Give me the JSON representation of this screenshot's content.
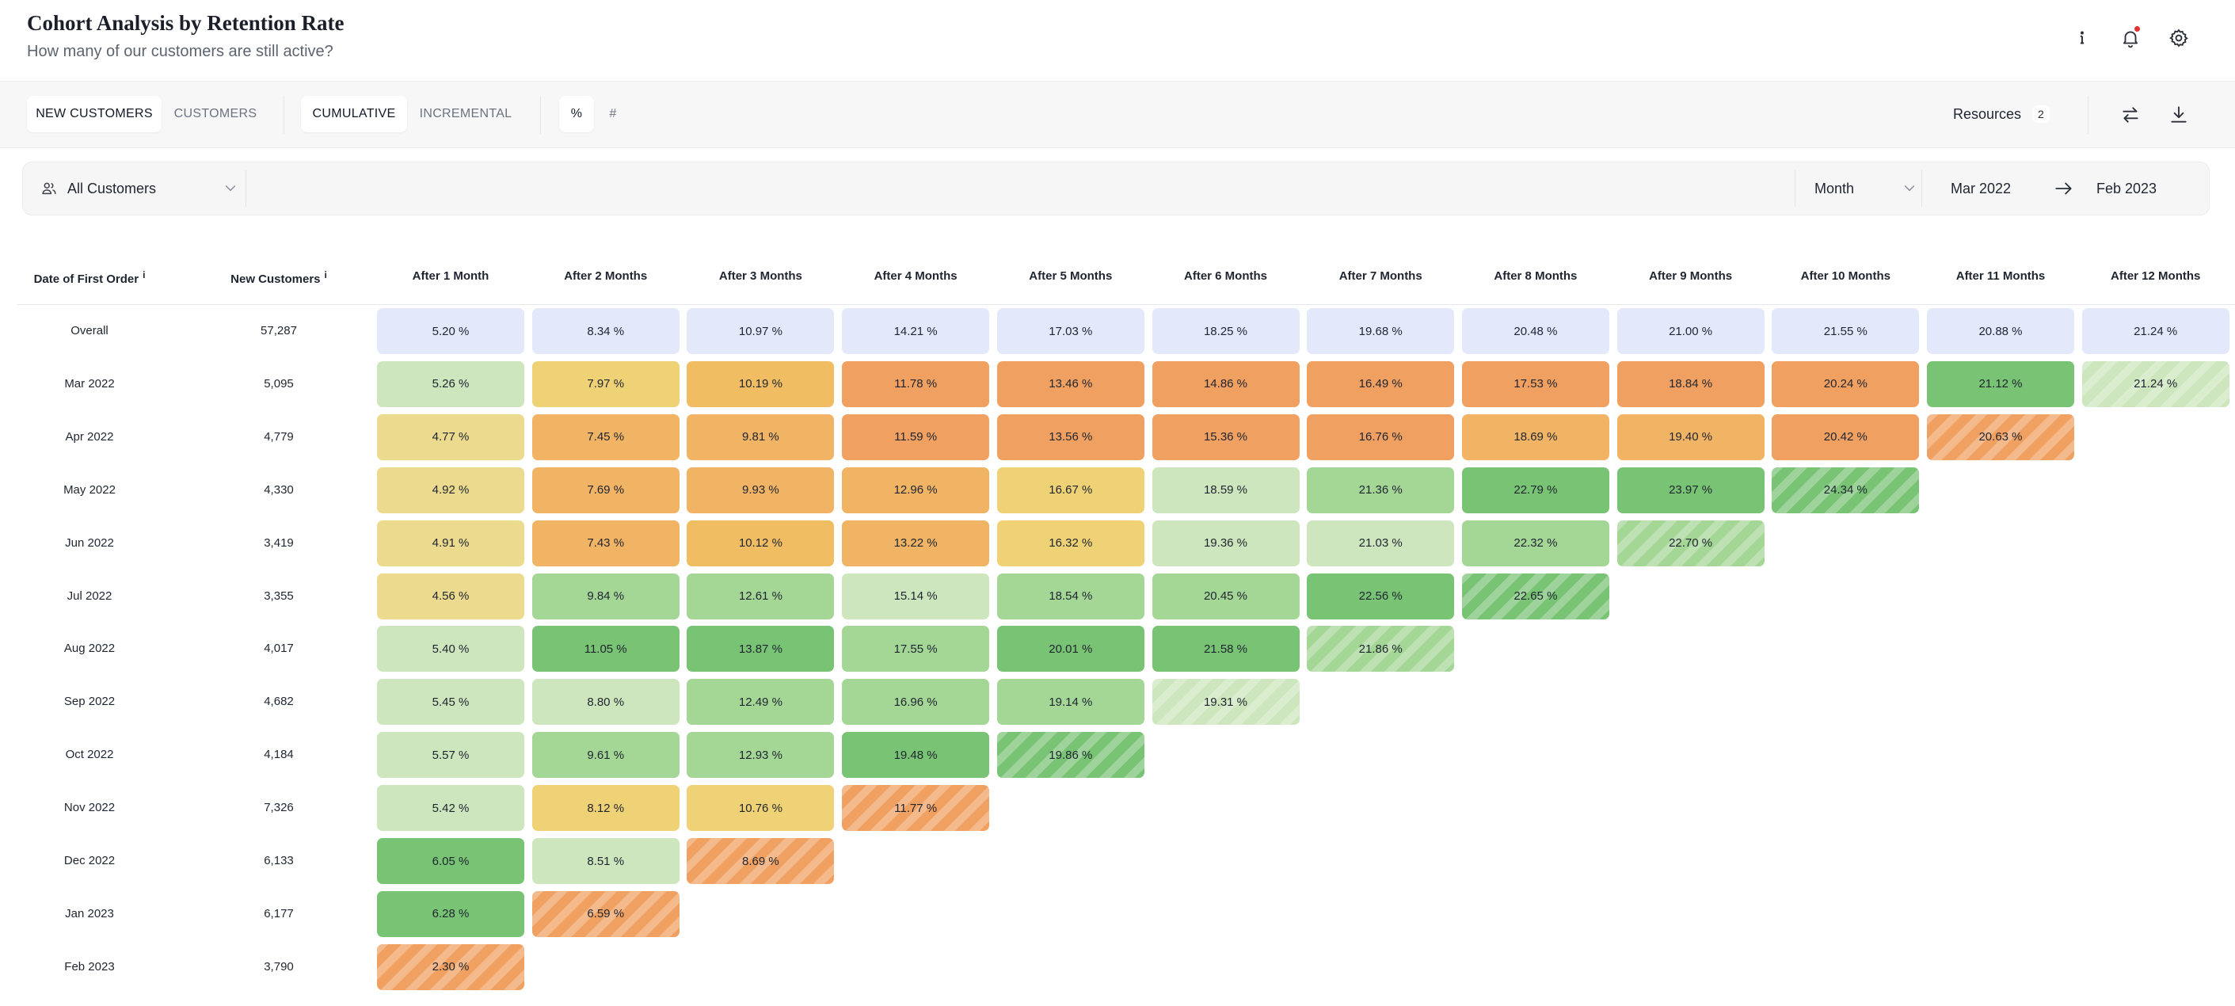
{
  "header": {
    "title": "Cohort Analysis by Retention Rate",
    "subtitle": "How many of our customers are still active?"
  },
  "toolbar": {
    "customer_toggle": [
      "NEW CUSTOMERS",
      "CUSTOMERS"
    ],
    "customer_toggle_active": 0,
    "mode_toggle": [
      "CUMULATIVE",
      "INCREMENTAL"
    ],
    "mode_toggle_active": 0,
    "unit_toggle": [
      "%",
      "#"
    ],
    "unit_toggle_active": 0,
    "resources_label": "Resources",
    "resources_count": "2"
  },
  "filters": {
    "segment": "All Customers",
    "period": "Month",
    "date_from": "Mar 2022",
    "date_to": "Feb 2023"
  },
  "icons": {
    "info": "info-icon",
    "bell": "bell-icon",
    "settings": "gear-icon",
    "swap": "swap-icon",
    "download": "download-icon",
    "users": "users-icon",
    "chevron": "chevron-down-icon",
    "arrow": "arrow-right-icon"
  },
  "colors": {
    "overall": "#e3e8fb",
    "green_strong": "#79c374",
    "green": "#a4d696",
    "green_light": "#cde6bd",
    "yellow": "#ecdb8f",
    "yellow_warm": "#efd275",
    "amber": "#f0bd62",
    "orange_light": "#f1b464",
    "orange": "#f0a060",
    "orange_strong": "#ef9a5a",
    "notification": "#e0332f"
  },
  "table": {
    "columns": [
      "Date of First Order",
      "New Customers",
      "After 1 Month",
      "After 2 Months",
      "After 3 Months",
      "After 4 Months",
      "After 5 Months",
      "After 6 Months",
      "After 7 Months",
      "After 8 Months",
      "After 9 Months",
      "After 10 Months",
      "After 11 Months",
      "After 12 Months"
    ],
    "rows": [
      {
        "label": "Overall",
        "customers": "57,287",
        "cells": [
          {
            "v": "5.20 %",
            "c": "overall"
          },
          {
            "v": "8.34 %",
            "c": "overall"
          },
          {
            "v": "10.97 %",
            "c": "overall"
          },
          {
            "v": "14.21 %",
            "c": "overall"
          },
          {
            "v": "17.03 %",
            "c": "overall"
          },
          {
            "v": "18.25 %",
            "c": "overall"
          },
          {
            "v": "19.68 %",
            "c": "overall"
          },
          {
            "v": "20.48 %",
            "c": "overall"
          },
          {
            "v": "21.00 %",
            "c": "overall"
          },
          {
            "v": "21.55 %",
            "c": "overall"
          },
          {
            "v": "20.88 %",
            "c": "overall"
          },
          {
            "v": "21.24 %",
            "c": "overall"
          }
        ]
      },
      {
        "label": "Mar 2022",
        "customers": "5,095",
        "cells": [
          {
            "v": "5.26 %",
            "c": "green_light"
          },
          {
            "v": "7.97 %",
            "c": "yellow_warm"
          },
          {
            "v": "10.19 %",
            "c": "amber"
          },
          {
            "v": "11.78 %",
            "c": "orange"
          },
          {
            "v": "13.46 %",
            "c": "orange"
          },
          {
            "v": "14.86 %",
            "c": "orange"
          },
          {
            "v": "16.49 %",
            "c": "orange"
          },
          {
            "v": "17.53 %",
            "c": "orange"
          },
          {
            "v": "18.84 %",
            "c": "orange"
          },
          {
            "v": "20.24 %",
            "c": "orange"
          },
          {
            "v": "21.12 %",
            "c": "green_strong"
          },
          {
            "v": "21.24 %",
            "c": "green_light",
            "p": true
          }
        ]
      },
      {
        "label": "Apr 2022",
        "customers": "4,779",
        "cells": [
          {
            "v": "4.77 %",
            "c": "yellow"
          },
          {
            "v": "7.45 %",
            "c": "orange_light"
          },
          {
            "v": "9.81 %",
            "c": "orange_light"
          },
          {
            "v": "11.59 %",
            "c": "orange"
          },
          {
            "v": "13.56 %",
            "c": "orange"
          },
          {
            "v": "15.36 %",
            "c": "orange"
          },
          {
            "v": "16.76 %",
            "c": "orange"
          },
          {
            "v": "18.69 %",
            "c": "orange_light"
          },
          {
            "v": "19.40 %",
            "c": "orange_light"
          },
          {
            "v": "20.42 %",
            "c": "orange"
          },
          {
            "v": "20.63 %",
            "c": "orange",
            "p": true
          }
        ]
      },
      {
        "label": "May 2022",
        "customers": "4,330",
        "cells": [
          {
            "v": "4.92 %",
            "c": "yellow"
          },
          {
            "v": "7.69 %",
            "c": "orange_light"
          },
          {
            "v": "9.93 %",
            "c": "orange_light"
          },
          {
            "v": "12.96 %",
            "c": "orange_light"
          },
          {
            "v": "16.67 %",
            "c": "yellow_warm"
          },
          {
            "v": "18.59 %",
            "c": "green_light"
          },
          {
            "v": "21.36 %",
            "c": "green"
          },
          {
            "v": "22.79 %",
            "c": "green_strong"
          },
          {
            "v": "23.97 %",
            "c": "green_strong"
          },
          {
            "v": "24.34 %",
            "c": "green_strong",
            "p": true
          }
        ]
      },
      {
        "label": "Jun 2022",
        "customers": "3,419",
        "cells": [
          {
            "v": "4.91 %",
            "c": "yellow"
          },
          {
            "v": "7.43 %",
            "c": "orange_light"
          },
          {
            "v": "10.12 %",
            "c": "amber"
          },
          {
            "v": "13.22 %",
            "c": "orange_light"
          },
          {
            "v": "16.32 %",
            "c": "yellow_warm"
          },
          {
            "v": "19.36 %",
            "c": "green_light"
          },
          {
            "v": "21.03 %",
            "c": "green_light"
          },
          {
            "v": "22.32 %",
            "c": "green"
          },
          {
            "v": "22.70 %",
            "c": "green",
            "p": true
          }
        ]
      },
      {
        "label": "Jul 2022",
        "customers": "3,355",
        "cells": [
          {
            "v": "4.56 %",
            "c": "yellow"
          },
          {
            "v": "9.84 %",
            "c": "green"
          },
          {
            "v": "12.61 %",
            "c": "green"
          },
          {
            "v": "15.14 %",
            "c": "green_light"
          },
          {
            "v": "18.54 %",
            "c": "green"
          },
          {
            "v": "20.45 %",
            "c": "green"
          },
          {
            "v": "22.56 %",
            "c": "green_strong"
          },
          {
            "v": "22.65 %",
            "c": "green_strong",
            "p": true
          }
        ]
      },
      {
        "label": "Aug 2022",
        "customers": "4,017",
        "cells": [
          {
            "v": "5.40 %",
            "c": "green_light"
          },
          {
            "v": "11.05 %",
            "c": "green_strong"
          },
          {
            "v": "13.87 %",
            "c": "green_strong"
          },
          {
            "v": "17.55 %",
            "c": "green"
          },
          {
            "v": "20.01 %",
            "c": "green_strong"
          },
          {
            "v": "21.58 %",
            "c": "green_strong"
          },
          {
            "v": "21.86 %",
            "c": "green",
            "p": true
          }
        ]
      },
      {
        "label": "Sep 2022",
        "customers": "4,682",
        "cells": [
          {
            "v": "5.45 %",
            "c": "green_light"
          },
          {
            "v": "8.80 %",
            "c": "green_light"
          },
          {
            "v": "12.49 %",
            "c": "green"
          },
          {
            "v": "16.96 %",
            "c": "green"
          },
          {
            "v": "19.14 %",
            "c": "green"
          },
          {
            "v": "19.31 %",
            "c": "green_light",
            "p": true
          }
        ]
      },
      {
        "label": "Oct 2022",
        "customers": "4,184",
        "cells": [
          {
            "v": "5.57 %",
            "c": "green_light"
          },
          {
            "v": "9.61 %",
            "c": "green"
          },
          {
            "v": "12.93 %",
            "c": "green"
          },
          {
            "v": "19.48 %",
            "c": "green_strong"
          },
          {
            "v": "19.86 %",
            "c": "green_strong",
            "p": true
          }
        ]
      },
      {
        "label": "Nov 2022",
        "customers": "7,326",
        "cells": [
          {
            "v": "5.42 %",
            "c": "green_light"
          },
          {
            "v": "8.12 %",
            "c": "yellow_warm"
          },
          {
            "v": "10.76 %",
            "c": "yellow_warm"
          },
          {
            "v": "11.77 %",
            "c": "orange",
            "p": true
          }
        ]
      },
      {
        "label": "Dec 2022",
        "customers": "6,133",
        "cells": [
          {
            "v": "6.05 %",
            "c": "green_strong"
          },
          {
            "v": "8.51 %",
            "c": "green_light"
          },
          {
            "v": "8.69 %",
            "c": "orange",
            "p": true
          }
        ]
      },
      {
        "label": "Jan 2023",
        "customers": "6,177",
        "cells": [
          {
            "v": "6.28 %",
            "c": "green_strong"
          },
          {
            "v": "6.59 %",
            "c": "orange",
            "p": true
          }
        ]
      },
      {
        "label": "Feb 2023",
        "customers": "3,790",
        "cells": [
          {
            "v": "2.30 %",
            "c": "orange",
            "p": true
          }
        ]
      }
    ]
  }
}
